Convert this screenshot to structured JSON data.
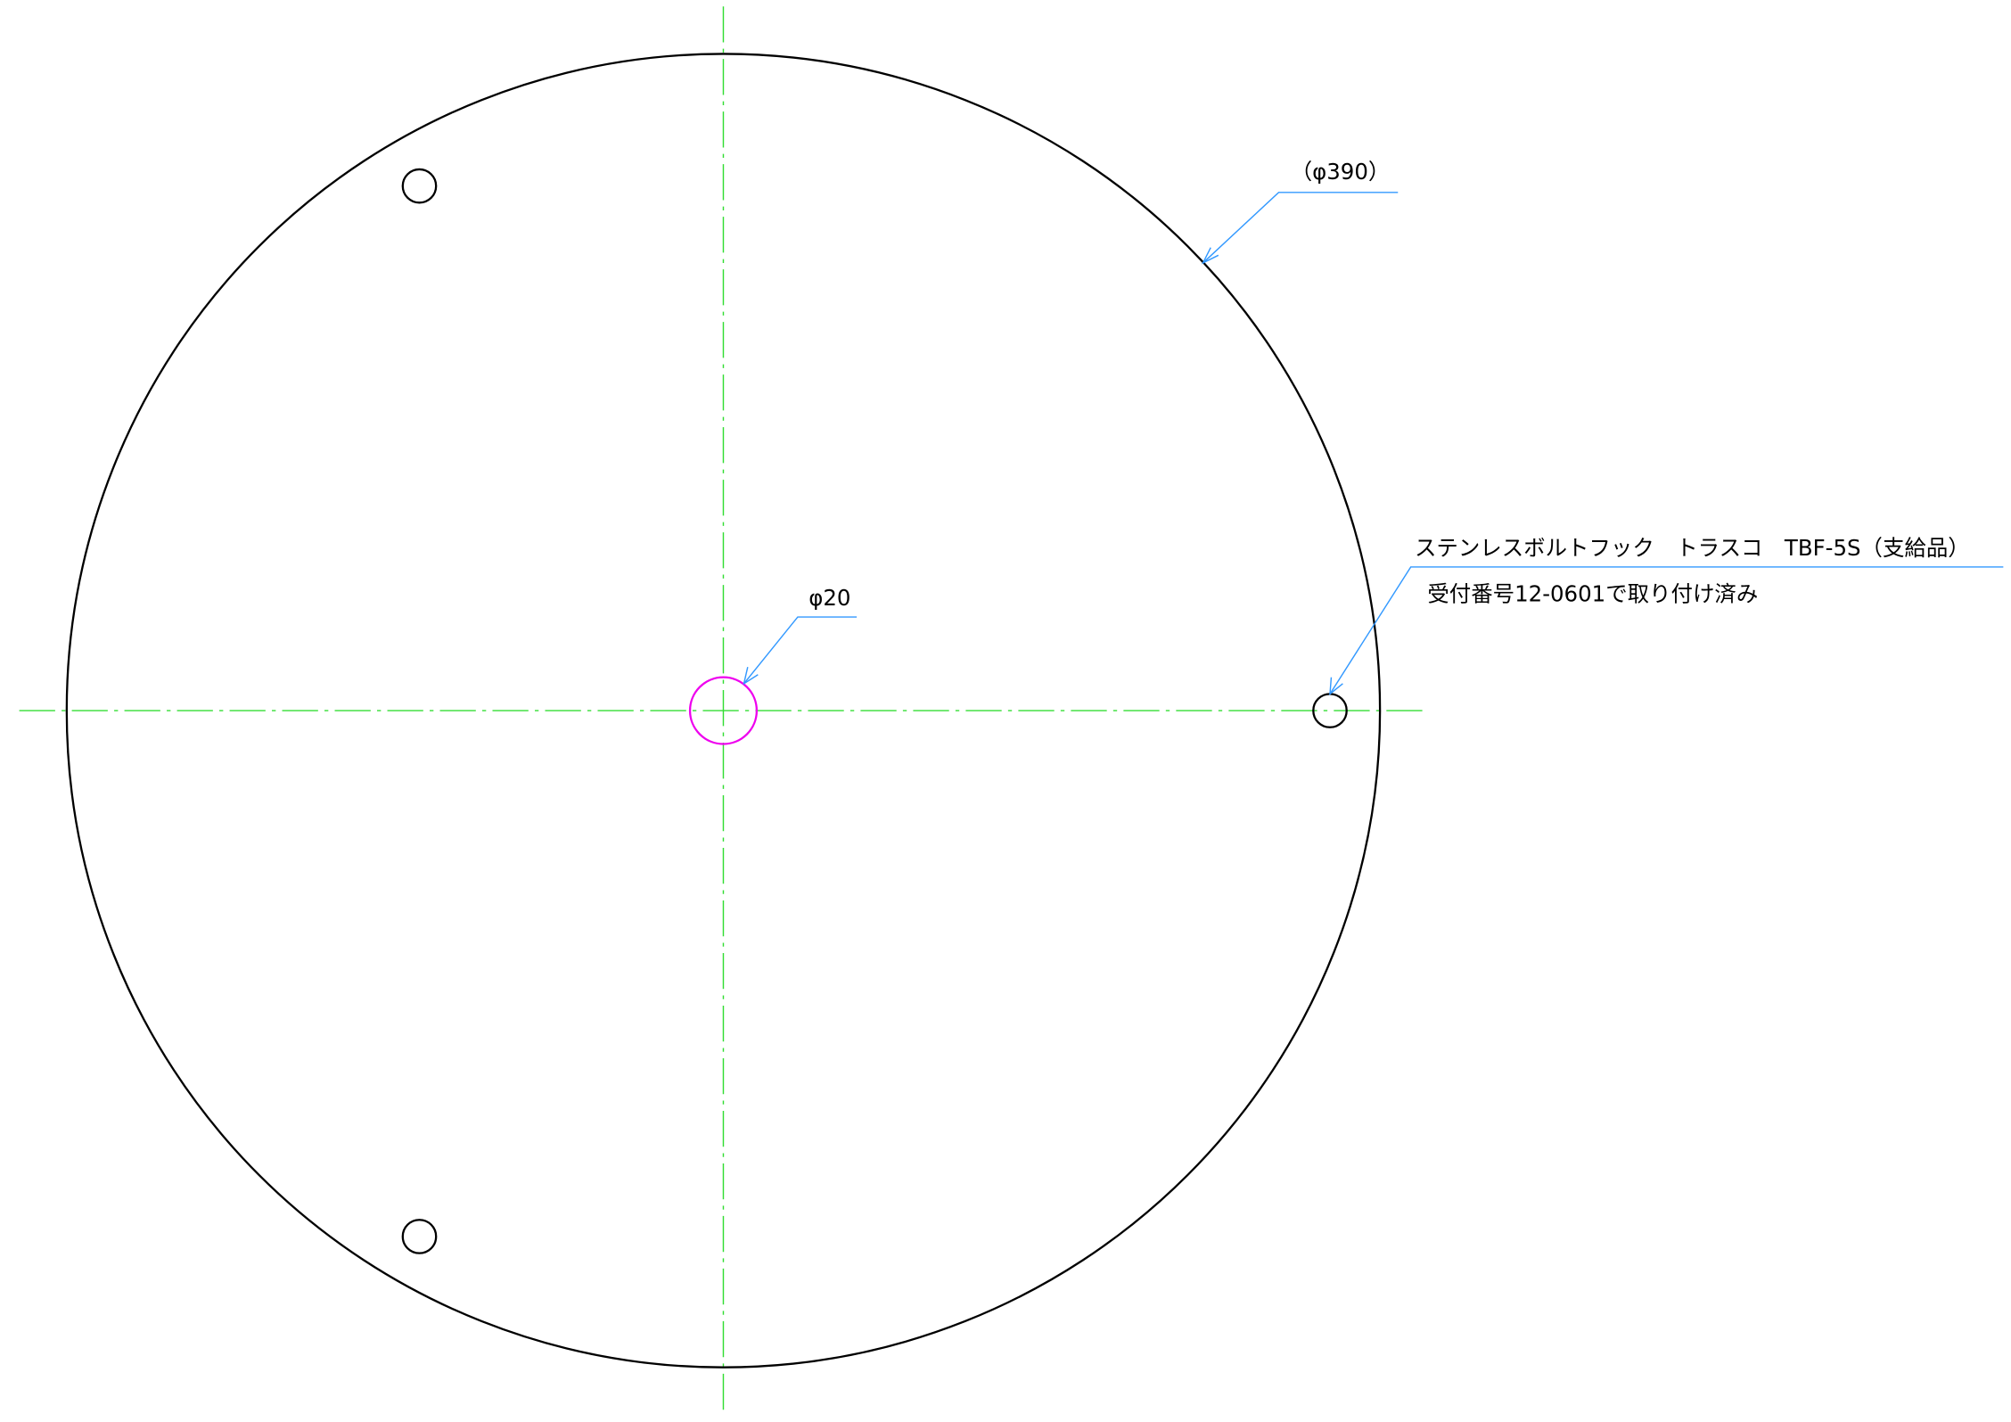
{
  "annotations": {
    "outer_diameter": "（φ390）",
    "center_hole": "φ20",
    "part_note": "ステンレスボルトフック　トラスコ　TBF-5S（支給品）",
    "part_note_detail": "受付番号12-0601で取り付け済み"
  }
}
